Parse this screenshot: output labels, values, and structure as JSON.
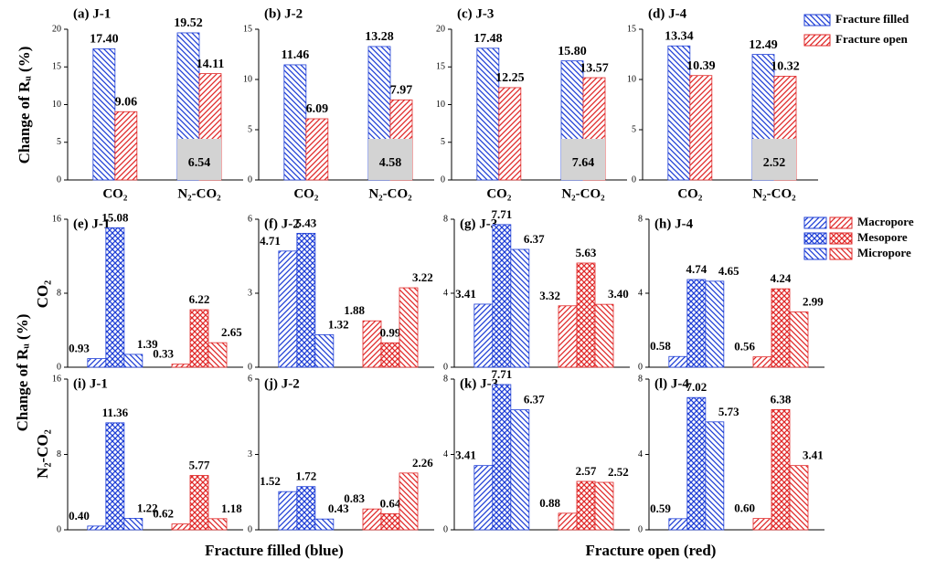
{
  "figure": {
    "ylabel": "Change of Rᵤ (%)",
    "row_labels": [
      "CO₂",
      "N₂-CO₂"
    ],
    "xlabels": [
      "Fracture filled (blue)",
      "Fracture open (red)"
    ]
  },
  "chart_data": [
    {
      "type": "bar",
      "title": "(a) J-1",
      "ylabel": "Change of Rᵤ (%)",
      "categories": [
        "CO₂",
        "N₂-CO₂"
      ],
      "series": [
        {
          "color": "#1f3fd6",
          "hatch": "back",
          "values": [
            17.4,
            19.52
          ],
          "value_labels": [
            "17.40",
            "19.52"
          ]
        },
        {
          "color": "#e02828",
          "hatch": "fwd",
          "values": [
            9.06,
            14.11
          ],
          "value_labels": [
            "9.06",
            "14.11"
          ]
        }
      ],
      "annotation": "6.54",
      "ylim": [
        0,
        20
      ],
      "yticks": [
        0,
        5,
        10,
        15,
        20
      ]
    },
    {
      "type": "bar",
      "title": "(b) J-2",
      "categories": [
        "CO₂",
        "N₂-CO₂"
      ],
      "series": [
        {
          "color": "#1f3fd6",
          "hatch": "back",
          "values": [
            11.46,
            13.28
          ],
          "value_labels": [
            "11.46",
            "13.28"
          ]
        },
        {
          "color": "#e02828",
          "hatch": "fwd",
          "values": [
            6.09,
            7.97
          ],
          "value_labels": [
            "6.09",
            "7.97"
          ]
        }
      ],
      "annotation": "4.58",
      "ylim": [
        0,
        15
      ],
      "yticks": [
        0,
        5,
        10,
        15
      ]
    },
    {
      "type": "bar",
      "title": "(c) J-3",
      "categories": [
        "CO₂",
        "N₂-CO₂"
      ],
      "series": [
        {
          "color": "#1f3fd6",
          "hatch": "back",
          "values": [
            17.48,
            15.8
          ],
          "value_labels": [
            "17.48",
            "15.80"
          ]
        },
        {
          "color": "#e02828",
          "hatch": "fwd",
          "values": [
            12.25,
            13.57
          ],
          "value_labels": [
            "12.25",
            "13.57"
          ]
        }
      ],
      "annotation": "7.64",
      "ylim": [
        0,
        20
      ],
      "yticks": [
        0,
        5,
        10,
        15,
        20
      ]
    },
    {
      "type": "bar",
      "title": "(d) J-4",
      "categories": [
        "CO₂",
        "N₂-CO₂"
      ],
      "series": [
        {
          "name": "Fracture filled",
          "color": "#1f3fd6",
          "hatch": "back",
          "values": [
            13.34,
            12.49
          ],
          "value_labels": [
            "13.34",
            "12.49"
          ]
        },
        {
          "name": "Fracture open",
          "color": "#e02828",
          "hatch": "fwd",
          "values": [
            10.39,
            10.32
          ],
          "value_labels": [
            "10.39",
            "10.32"
          ]
        }
      ],
      "annotation": "2.52",
      "ylim": [
        0,
        15
      ],
      "yticks": [
        0,
        5,
        10,
        15
      ]
    },
    {
      "type": "groupbar",
      "title": "(e) J-1",
      "categories": [
        null,
        null
      ],
      "category_colors": [
        "#1f3fd6",
        "#e02828"
      ],
      "series": [
        {
          "hatch": "fwd",
          "values": [
            0.93,
            0.33
          ],
          "value_labels": [
            "0.93",
            "0.33"
          ]
        },
        {
          "hatch": "cross",
          "values": [
            15.08,
            6.22
          ],
          "value_labels": [
            "15.08",
            "6.22"
          ]
        },
        {
          "hatch": "back",
          "values": [
            1.39,
            2.65
          ],
          "value_labels": [
            "1.39",
            "2.65"
          ]
        }
      ],
      "ylim": [
        0,
        16
      ],
      "yticks": [
        0,
        8,
        16
      ]
    },
    {
      "type": "groupbar",
      "title": "(f) J-2",
      "categories": [
        null,
        null
      ],
      "category_colors": [
        "#1f3fd6",
        "#e02828"
      ],
      "series": [
        {
          "hatch": "fwd",
          "values": [
            4.71,
            1.88
          ],
          "value_labels": [
            "4.71",
            "1.88"
          ]
        },
        {
          "hatch": "cross",
          "values": [
            5.43,
            0.99
          ],
          "value_labels": [
            "5.43",
            "0.99"
          ]
        },
        {
          "hatch": "back",
          "values": [
            1.32,
            3.22
          ],
          "value_labels": [
            "1.32",
            "3.22"
          ]
        }
      ],
      "ylim": [
        0,
        6
      ],
      "yticks": [
        0,
        3,
        6
      ]
    },
    {
      "type": "groupbar",
      "title": "(g) J-3",
      "categories": [
        null,
        null
      ],
      "category_colors": [
        "#1f3fd6",
        "#e02828"
      ],
      "series": [
        {
          "hatch": "fwd",
          "values": [
            3.41,
            3.32
          ],
          "value_labels": [
            "3.41",
            "3.32"
          ]
        },
        {
          "hatch": "cross",
          "values": [
            7.71,
            5.63
          ],
          "value_labels": [
            "7.71",
            "5.63"
          ]
        },
        {
          "hatch": "back",
          "values": [
            6.37,
            3.4
          ],
          "value_labels": [
            "6.37",
            "3.40"
          ]
        }
      ],
      "ylim": [
        0,
        8
      ],
      "yticks": [
        0,
        4,
        8
      ]
    },
    {
      "type": "groupbar",
      "title": "(h) J-4",
      "categories": [
        null,
        null
      ],
      "category_colors": [
        "#1f3fd6",
        "#e02828"
      ],
      "series": [
        {
          "name": "Macropore",
          "hatch": "fwd",
          "values": [
            0.58,
            0.56
          ],
          "value_labels": [
            "0.58",
            "0.56"
          ]
        },
        {
          "name": "Mesopore",
          "hatch": "cross",
          "values": [
            4.74,
            4.24
          ],
          "value_labels": [
            "4.74",
            "4.24"
          ]
        },
        {
          "name": "Micropore",
          "hatch": "back",
          "values": [
            4.65,
            2.99
          ],
          "value_labels": [
            "4.65",
            "2.99"
          ]
        }
      ],
      "ylim": [
        0,
        8
      ],
      "yticks": [
        0,
        4,
        8
      ]
    },
    {
      "type": "groupbar",
      "title": "(i) J-1",
      "categories": [
        null,
        null
      ],
      "category_colors": [
        "#1f3fd6",
        "#e02828"
      ],
      "series": [
        {
          "hatch": "fwd",
          "values": [
            0.4,
            0.62
          ],
          "value_labels": [
            "0.40",
            "0.62"
          ]
        },
        {
          "hatch": "cross",
          "values": [
            11.36,
            5.77
          ],
          "value_labels": [
            "11.36",
            "5.77"
          ]
        },
        {
          "hatch": "back",
          "values": [
            1.22,
            1.18
          ],
          "value_labels": [
            "1.22",
            "1.18"
          ]
        }
      ],
      "ylim": [
        0,
        16
      ],
      "yticks": [
        0,
        8,
        16
      ]
    },
    {
      "type": "groupbar",
      "title": "(j) J-2",
      "categories": [
        null,
        null
      ],
      "category_colors": [
        "#1f3fd6",
        "#e02828"
      ],
      "series": [
        {
          "hatch": "fwd",
          "values": [
            1.52,
            0.83
          ],
          "value_labels": [
            "1.52",
            "0.83"
          ]
        },
        {
          "hatch": "cross",
          "values": [
            1.72,
            0.64
          ],
          "value_labels": [
            "1.72",
            "0.64"
          ]
        },
        {
          "hatch": "back",
          "values": [
            0.43,
            2.26
          ],
          "value_labels": [
            "0.43",
            "2.26"
          ]
        }
      ],
      "ylim": [
        0,
        6
      ],
      "yticks": [
        0,
        3,
        6
      ]
    },
    {
      "type": "groupbar",
      "title": "(k) J-3",
      "categories": [
        null,
        null
      ],
      "category_colors": [
        "#1f3fd6",
        "#e02828"
      ],
      "series": [
        {
          "hatch": "fwd",
          "values": [
            3.41,
            0.88
          ],
          "value_labels": [
            "3.41",
            "0.88"
          ]
        },
        {
          "hatch": "cross",
          "values": [
            7.71,
            2.57
          ],
          "value_labels": [
            "7.71",
            "2.57"
          ]
        },
        {
          "hatch": "back",
          "values": [
            6.37,
            2.52
          ],
          "value_labels": [
            "6.37",
            "2.52"
          ]
        }
      ],
      "ylim": [
        0,
        8
      ],
      "yticks": [
        0,
        4,
        8
      ]
    },
    {
      "type": "groupbar",
      "title": "(l) J-4",
      "categories": [
        null,
        null
      ],
      "category_colors": [
        "#1f3fd6",
        "#e02828"
      ],
      "series": [
        {
          "hatch": "fwd",
          "values": [
            0.59,
            0.6
          ],
          "value_labels": [
            "0.59",
            "0.60"
          ]
        },
        {
          "hatch": "cross",
          "values": [
            7.02,
            6.38
          ],
          "value_labels": [
            "7.02",
            "6.38"
          ]
        },
        {
          "hatch": "back",
          "values": [
            5.73,
            3.41
          ],
          "value_labels": [
            "5.73",
            "3.41"
          ]
        }
      ],
      "ylim": [
        0,
        8
      ],
      "yticks": [
        0,
        4,
        8
      ]
    }
  ]
}
